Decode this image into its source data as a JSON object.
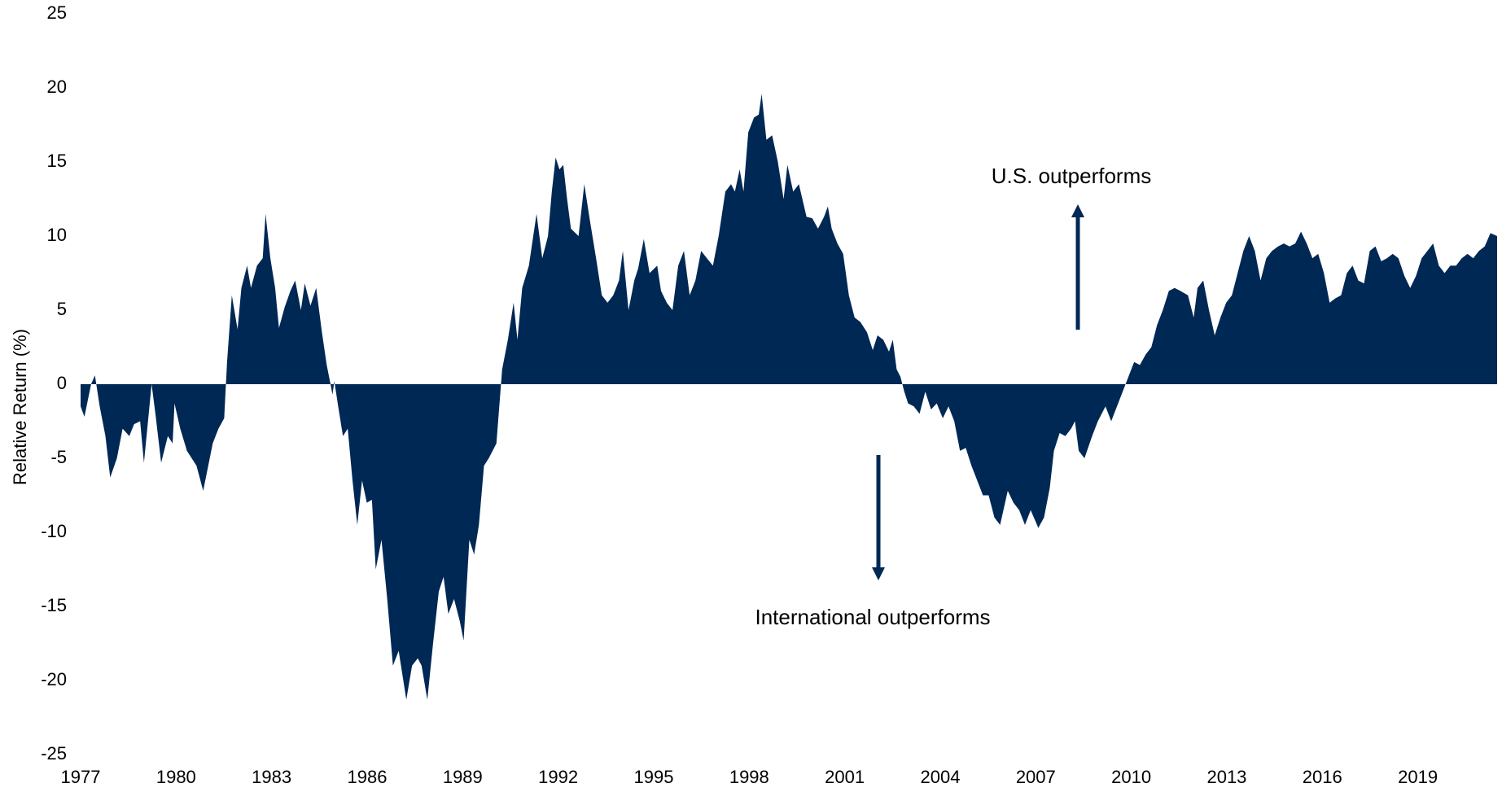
{
  "chart_data": {
    "type": "area",
    "color": "#002855",
    "y_label": "Relative  Return (%)",
    "annotations": [
      "U.S. outperforms",
      "International outperforms"
    ],
    "xlim": [
      1977,
      2021.49
    ],
    "xticks": [
      1977,
      1980,
      1983,
      1986,
      1989,
      1992,
      1995,
      1998,
      2001,
      2004,
      2007,
      2010,
      2013,
      2016,
      2019
    ],
    "ylim": [
      -25,
      25
    ],
    "yticks": [
      -25,
      -20,
      -15,
      -10,
      -5,
      0,
      5,
      10,
      15,
      20,
      25
    ],
    "x": [
      1977.0,
      1977.12,
      1977.33,
      1977.45,
      1977.6,
      1977.78,
      1977.93,
      1978.14,
      1978.32,
      1978.53,
      1978.68,
      1978.87,
      1978.99,
      1979.14,
      1979.23,
      1979.35,
      1979.53,
      1979.74,
      1979.89,
      1979.95,
      1980.13,
      1980.34,
      1980.64,
      1980.85,
      1981.15,
      1981.33,
      1981.51,
      1981.6,
      1981.75,
      1981.93,
      1982.05,
      1982.23,
      1982.35,
      1982.54,
      1982.72,
      1982.81,
      1982.96,
      1983.11,
      1983.23,
      1983.41,
      1983.59,
      1983.74,
      1983.92,
      1984.04,
      1984.22,
      1984.4,
      1984.58,
      1984.73,
      1984.85,
      1984.91,
      1984.97,
      1985.09,
      1985.24,
      1985.39,
      1985.54,
      1985.69,
      1985.84,
      1985.99,
      1986.15,
      1986.27,
      1986.45,
      1986.63,
      1986.81,
      1986.99,
      1987.23,
      1987.41,
      1987.59,
      1987.71,
      1987.89,
      1988.07,
      1988.25,
      1988.4,
      1988.55,
      1988.73,
      1988.91,
      1989.03,
      1989.21,
      1989.36,
      1989.51,
      1989.67,
      1989.82,
      1990.06,
      1990.24,
      1990.42,
      1990.6,
      1990.72,
      1990.87,
      1991.08,
      1991.32,
      1991.5,
      1991.68,
      1991.8,
      1991.92,
      1992.04,
      1992.16,
      1992.28,
      1992.4,
      1992.64,
      1992.82,
      1993.0,
      1993.19,
      1993.37,
      1993.55,
      1993.73,
      1993.91,
      1994.03,
      1994.21,
      1994.39,
      1994.51,
      1994.69,
      1994.87,
      1995.11,
      1995.23,
      1995.41,
      1995.59,
      1995.77,
      1995.95,
      1996.13,
      1996.31,
      1996.49,
      1996.67,
      1996.86,
      1997.04,
      1997.25,
      1997.43,
      1997.55,
      1997.7,
      1997.82,
      1997.97,
      1998.15,
      1998.3,
      1998.39,
      1998.54,
      1998.72,
      1998.9,
      1999.08,
      1999.2,
      1999.38,
      1999.56,
      1999.8,
      1999.98,
      2000.16,
      2000.35,
      2000.47,
      2000.59,
      2000.77,
      2000.95,
      2001.13,
      2001.31,
      2001.49,
      2001.7,
      2001.88,
      2002.03,
      2002.21,
      2002.39,
      2002.51,
      2002.63,
      2002.75,
      2002.87,
      2002.99,
      2003.17,
      2003.35,
      2003.53,
      2003.71,
      2003.89,
      2004.08,
      2004.26,
      2004.44,
      2004.62,
      2004.8,
      2004.98,
      2005.16,
      2005.34,
      2005.52,
      2005.7,
      2005.88,
      2006.12,
      2006.3,
      2006.48,
      2006.66,
      2006.84,
      2007.08,
      2007.26,
      2007.44,
      2007.57,
      2007.75,
      2007.93,
      2008.11,
      2008.23,
      2008.35,
      2008.53,
      2008.77,
      2008.95,
      2009.19,
      2009.37,
      2009.55,
      2009.73,
      2009.91,
      2010.09,
      2010.27,
      2010.45,
      2010.63,
      2010.81,
      2010.99,
      2011.18,
      2011.36,
      2011.54,
      2011.78,
      2011.96,
      2012.08,
      2012.26,
      2012.44,
      2012.62,
      2012.8,
      2012.98,
      2013.16,
      2013.34,
      2013.52,
      2013.7,
      2013.88,
      2014.06,
      2014.24,
      2014.42,
      2014.61,
      2014.79,
      2014.97,
      2015.15,
      2015.33,
      2015.51,
      2015.69,
      2015.87,
      2016.05,
      2016.23,
      2016.41,
      2016.59,
      2016.77,
      2016.95,
      2017.13,
      2017.31,
      2017.49,
      2017.67,
      2017.85,
      2018.03,
      2018.21,
      2018.39,
      2018.58,
      2018.76,
      2018.94,
      2019.12,
      2019.3,
      2019.48,
      2019.66,
      2019.84,
      2020.02,
      2020.2,
      2020.38,
      2020.56,
      2020.74,
      2020.92,
      2021.1,
      2021.28,
      2021.49
    ],
    "values": [
      -1.5,
      -2.2,
      0,
      0.6,
      -1.5,
      -3.5,
      -6.3,
      -5,
      -3,
      -3.5,
      -2.7,
      -2.5,
      -5.3,
      -2,
      0,
      -2,
      -5.3,
      -3.5,
      -4,
      -1.3,
      -3,
      -4.5,
      -5.5,
      -7.2,
      -4,
      -3,
      -2.3,
      1.5,
      6,
      3.7,
      6.5,
      8,
      6.5,
      8,
      8.5,
      11.5,
      8.5,
      6.5,
      3.8,
      5.2,
      6.3,
      7,
      5,
      6.8,
      5.3,
      6.5,
      3.5,
      1.3,
      0,
      -0.7,
      0.2,
      -1.5,
      -3.5,
      -3,
      -6.5,
      -9.5,
      -6.5,
      -8,
      -7.8,
      -12.5,
      -10.5,
      -14.5,
      -19,
      -18,
      -21.3,
      -19,
      -18.5,
      -19,
      -21.3,
      -17.5,
      -14,
      -13,
      -15.5,
      -14.5,
      -16,
      -17.3,
      -10.5,
      -11.5,
      -9.5,
      -5.5,
      -5,
      -4,
      1,
      3,
      5.5,
      3,
      6.5,
      8,
      11.5,
      8.5,
      10,
      13,
      15.3,
      14.5,
      14.8,
      12.5,
      10.5,
      10,
      13.5,
      11,
      8.5,
      6,
      5.5,
      6,
      7,
      9,
      5,
      7,
      7.8,
      9.8,
      7.5,
      8,
      6.3,
      5.5,
      5,
      8,
      9,
      6,
      7,
      9,
      8.5,
      8,
      10,
      13,
      13.5,
      13,
      14.5,
      13,
      17,
      18,
      18.2,
      19.6,
      16.5,
      16.8,
      15,
      12.5,
      14.8,
      13,
      13.5,
      11.3,
      11.2,
      10.5,
      11.3,
      12,
      10.5,
      9.5,
      8.8,
      6,
      4.5,
      4.2,
      3.5,
      2.3,
      3.3,
      3,
      2.2,
      3,
      1,
      0.5,
      -0.5,
      -1.3,
      -1.5,
      -2,
      -0.5,
      -1.7,
      -1.3,
      -2.3,
      -1.5,
      -2.5,
      -4.5,
      -4.3,
      -5.5,
      -6.5,
      -7.5,
      -7.5,
      -9,
      -9.5,
      -7.2,
      -8,
      -8.5,
      -9.5,
      -8.5,
      -9.7,
      -9,
      -7,
      -4.5,
      -3.3,
      -3.5,
      -3,
      -2.5,
      -4.5,
      -5,
      -3.5,
      -2.5,
      -1.5,
      -2.5,
      -1.5,
      -0.5,
      0.5,
      1.5,
      1.3,
      2,
      2.5,
      4,
      5,
      6.3,
      6.5,
      6.3,
      6,
      4.5,
      6.5,
      7,
      5,
      3.3,
      4.5,
      5.5,
      6,
      7.5,
      9,
      10,
      9,
      7,
      8.5,
      9,
      9.3,
      9.5,
      9.3,
      9.5,
      10.3,
      9.5,
      8.5,
      8.8,
      7.5,
      5.5,
      5.8,
      6,
      7.5,
      8,
      7,
      6.8,
      9,
      9.3,
      8.3,
      8.5,
      8.8,
      8.5,
      7.3,
      6.5,
      7.3,
      8.5,
      9,
      9.5,
      8,
      7.5,
      8,
      8,
      8.5,
      8.8,
      8.5,
      9,
      9.3,
      10.2,
      10
    ]
  }
}
